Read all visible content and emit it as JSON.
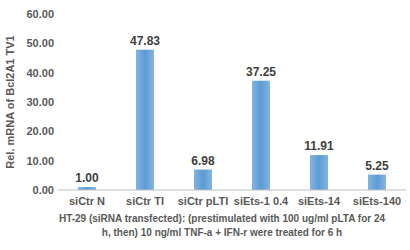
{
  "chart_data": {
    "type": "bar",
    "y_label": "Rel. mRNA of Bcl2A1 TV1",
    "x_label": [
      "HT-29 (siRNA transfected): (prestimulated with 100 ug/ml pLTA for 24",
      "h, then) 10 ng/ml TNF-a + IFN-r were treated for 6 h"
    ],
    "categories": [
      "siCtr N",
      "siCtr TI",
      "siCtr pLTI",
      "siEts-1 0.4",
      "siEts-14",
      "siEts-140"
    ],
    "values": [
      1.0,
      47.83,
      6.98,
      37.25,
      11.91,
      5.25
    ],
    "value_labels": [
      "1.00",
      "47.83",
      "6.98",
      "37.25",
      "11.91",
      "5.25"
    ],
    "data_labels": true,
    "color": "#5b9bd5",
    "ylim": [
      0,
      60
    ],
    "yticks": [
      {
        "value": 0,
        "label": "0.00"
      },
      {
        "value": 10,
        "label": "10.00"
      },
      {
        "value": 20,
        "label": "20.00"
      },
      {
        "value": 30,
        "label": "30.00"
      },
      {
        "value": 40,
        "label": "40.00"
      },
      {
        "value": 50,
        "label": "50.00"
      },
      {
        "value": 60,
        "label": "60.00"
      }
    ],
    "grid": false
  }
}
